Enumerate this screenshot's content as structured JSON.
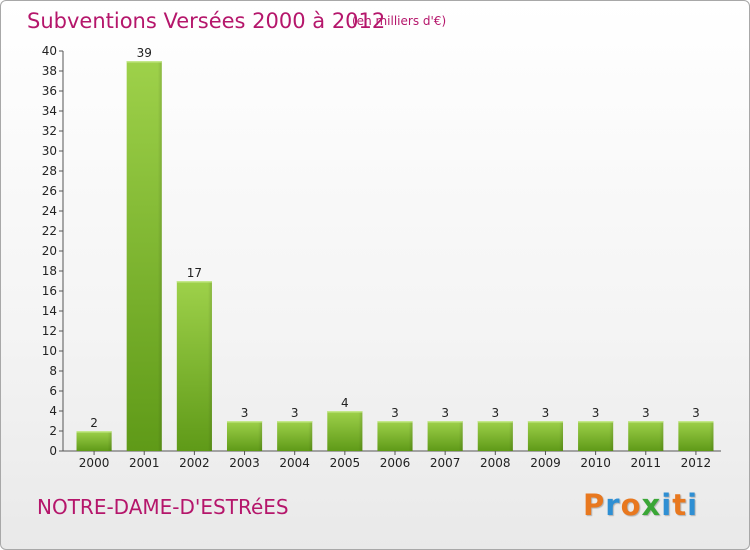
{
  "header": {
    "title": "Subventions Versées 2000 à 2012",
    "subtitle": "(en milliers d'€)"
  },
  "footer": {
    "commune": "NOTRE-DAME-D'ESTRéES",
    "logo": {
      "text": "Proxiti",
      "letters": [
        "P",
        "r",
        "o",
        "x",
        "i",
        "t",
        "i"
      ],
      "colors": [
        "#e8781f",
        "#2f8fd3",
        "#e8781f",
        "#3aa636",
        "#2f8fd3",
        "#e8781f",
        "#2f8fd3"
      ]
    }
  },
  "colors": {
    "accent": "#b5166b",
    "bar_light": "#9ed14a",
    "bar_dark": "#5f9a18",
    "axis": "#555555"
  },
  "chart_data": {
    "type": "bar",
    "title": "Subventions Versées 2000 à 2012",
    "subtitle": "(en milliers d'€)",
    "xlabel": "",
    "ylabel": "",
    "categories": [
      "2000",
      "2001",
      "2002",
      "2003",
      "2004",
      "2005",
      "2006",
      "2007",
      "2008",
      "2009",
      "2010",
      "2011",
      "2012"
    ],
    "values": [
      2,
      39,
      17,
      3,
      3,
      4,
      3,
      3,
      3,
      3,
      3,
      3,
      3
    ],
    "ylim": [
      0,
      40
    ],
    "yticks": [
      0,
      2,
      4,
      6,
      8,
      10,
      12,
      14,
      16,
      18,
      20,
      22,
      24,
      26,
      28,
      30,
      32,
      34,
      36,
      38,
      40
    ],
    "grid": false,
    "legend": "none",
    "data_labels": true
  }
}
